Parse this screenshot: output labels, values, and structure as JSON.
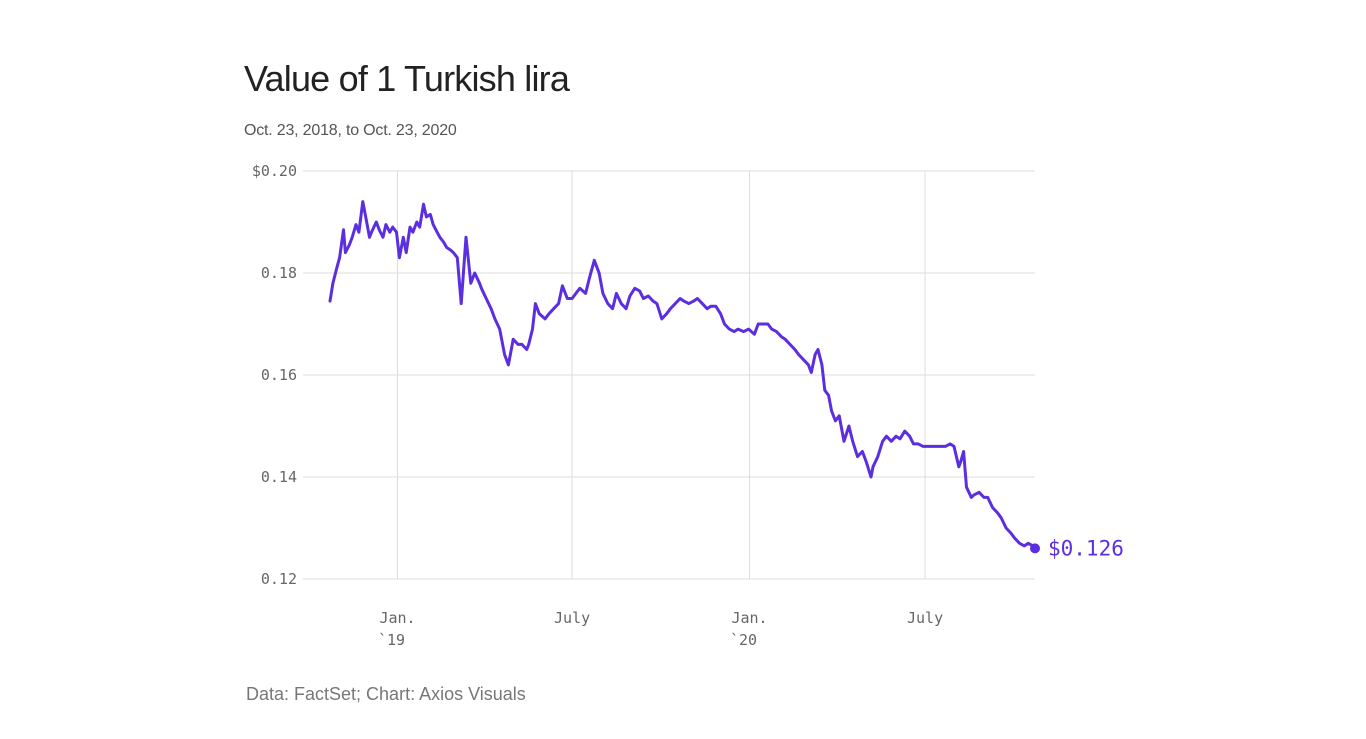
{
  "header": {
    "title": "Value of 1 Turkish lira",
    "subtitle": "Oct. 23, 2018, to Oct. 23, 2020"
  },
  "footer": {
    "source": "Data: FactSet; Chart: Axios Visuals"
  },
  "colors": {
    "line": "#5b2ee0",
    "grid": "#dddddd",
    "text": "#666666"
  },
  "chart_data": {
    "type": "line",
    "title": "Value of 1 Turkish lira",
    "subtitle": "Oct. 23, 2018, to Oct. 23, 2020",
    "xlabel": "",
    "ylabel": "",
    "ylim": [
      0.12,
      0.2
    ],
    "xlim": [
      "2018-10-23",
      "2020-10-23"
    ],
    "grid": true,
    "y_ticks": [
      {
        "value": 0.2,
        "label": "$0.20"
      },
      {
        "value": 0.18,
        "label": "0.18"
      },
      {
        "value": 0.16,
        "label": "0.16"
      },
      {
        "value": 0.14,
        "label": "0.14"
      },
      {
        "value": 0.12,
        "label": "0.12"
      }
    ],
    "x_ticks": [
      {
        "date": "2019-01-01",
        "label": "Jan.",
        "sublabel": "`19"
      },
      {
        "date": "2019-07-01",
        "label": "July",
        "sublabel": ""
      },
      {
        "date": "2020-01-01",
        "label": "Jan.",
        "sublabel": "`20"
      },
      {
        "date": "2020-07-01",
        "label": "July",
        "sublabel": ""
      }
    ],
    "end_label": "$0.126",
    "series": [
      {
        "x": [
          "2018-10-23",
          "2018-10-26",
          "2018-10-30",
          "2018-11-02",
          "2018-11-06",
          "2018-11-08",
          "2018-11-12",
          "2018-11-15",
          "2018-11-19",
          "2018-11-22",
          "2018-11-26",
          "2018-11-29",
          "2018-12-03",
          "2018-12-05",
          "2018-12-10",
          "2018-12-13",
          "2018-12-17",
          "2018-12-20",
          "2018-12-24",
          "2018-12-27",
          "2018-12-31",
          "2019-01-03",
          "2019-01-07",
          "2019-01-10",
          "2019-01-14",
          "2019-01-17",
          "2019-01-21",
          "2019-01-24",
          "2019-01-28",
          "2019-01-31",
          "2019-02-04",
          "2019-02-07",
          "2019-02-11",
          "2019-02-14",
          "2019-02-18",
          "2019-02-21",
          "2019-02-25",
          "2019-02-28",
          "2019-03-04",
          "2019-03-08",
          "2019-03-13",
          "2019-03-18",
          "2019-03-22",
          "2019-03-27",
          "2019-03-29",
          "2019-04-03",
          "2019-04-08",
          "2019-04-12",
          "2019-04-17",
          "2019-04-22",
          "2019-04-26",
          "2019-05-01",
          "2019-05-06",
          "2019-05-10",
          "2019-05-15",
          "2019-05-17",
          "2019-05-21",
          "2019-05-24",
          "2019-05-28",
          "2019-06-03",
          "2019-06-07",
          "2019-06-12",
          "2019-06-17",
          "2019-06-21",
          "2019-06-26",
          "2019-07-01",
          "2019-07-05",
          "2019-07-09",
          "2019-07-15",
          "2019-07-19",
          "2019-07-24",
          "2019-07-29",
          "2019-08-02",
          "2019-08-07",
          "2019-08-12",
          "2019-08-16",
          "2019-08-21",
          "2019-08-26",
          "2019-08-30",
          "2019-09-04",
          "2019-09-09",
          "2019-09-13",
          "2019-09-18",
          "2019-09-23",
          "2019-09-27",
          "2019-10-02",
          "2019-10-07",
          "2019-10-11",
          "2019-10-16",
          "2019-10-21",
          "2019-10-25",
          "2019-10-30",
          "2019-11-04",
          "2019-11-08",
          "2019-11-13",
          "2019-11-18",
          "2019-11-22",
          "2019-11-27",
          "2019-12-02",
          "2019-12-06",
          "2019-12-11",
          "2019-12-16",
          "2019-12-20",
          "2019-12-26",
          "2019-12-31",
          "2020-01-06",
          "2020-01-10",
          "2020-01-15",
          "2020-01-20",
          "2020-01-24",
          "2020-01-29",
          "2020-02-03",
          "2020-02-07",
          "2020-02-12",
          "2020-02-17",
          "2020-02-21",
          "2020-02-26",
          "2020-03-02",
          "2020-03-05",
          "2020-03-09",
          "2020-03-12",
          "2020-03-16",
          "2020-03-19",
          "2020-03-23",
          "2020-03-26",
          "2020-03-30",
          "2020-04-03",
          "2020-04-08",
          "2020-04-13",
          "2020-04-17",
          "2020-04-22",
          "2020-04-27",
          "2020-05-01",
          "2020-05-06",
          "2020-05-08",
          "2020-05-13",
          "2020-05-18",
          "2020-05-22",
          "2020-05-27",
          "2020-06-01",
          "2020-06-05",
          "2020-06-10",
          "2020-06-15",
          "2020-06-19",
          "2020-06-24",
          "2020-06-29",
          "2020-07-03",
          "2020-07-08",
          "2020-07-13",
          "2020-07-17",
          "2020-07-22",
          "2020-07-27",
          "2020-07-31",
          "2020-08-05",
          "2020-08-07",
          "2020-08-10",
          "2020-08-13",
          "2020-08-18",
          "2020-08-21",
          "2020-08-26",
          "2020-08-31",
          "2020-09-04",
          "2020-09-09",
          "2020-09-14",
          "2020-09-18",
          "2020-09-23",
          "2020-09-28",
          "2020-10-02",
          "2020-10-07",
          "2020-10-12",
          "2020-10-16",
          "2020-10-21",
          "2020-10-23"
        ],
        "y": [
          0.1745,
          0.178,
          0.181,
          0.183,
          0.1885,
          0.184,
          0.1855,
          0.187,
          0.1895,
          0.188,
          0.194,
          0.191,
          0.187,
          0.188,
          0.19,
          0.1885,
          0.187,
          0.1895,
          0.188,
          0.189,
          0.188,
          0.183,
          0.187,
          0.184,
          0.189,
          0.188,
          0.19,
          0.189,
          0.1935,
          0.191,
          0.1915,
          0.1895,
          0.188,
          0.187,
          0.186,
          0.185,
          0.1845,
          0.184,
          0.183,
          0.174,
          0.187,
          0.178,
          0.18,
          0.178,
          0.177,
          0.175,
          0.173,
          0.171,
          0.169,
          0.164,
          0.162,
          0.167,
          0.166,
          0.166,
          0.165,
          0.166,
          0.169,
          0.174,
          0.172,
          0.171,
          0.172,
          0.173,
          0.174,
          0.1775,
          0.175,
          0.175,
          0.176,
          0.177,
          0.176,
          0.179,
          0.1825,
          0.18,
          0.176,
          0.174,
          0.173,
          0.176,
          0.174,
          0.173,
          0.1755,
          0.177,
          0.1765,
          0.175,
          0.1755,
          0.1745,
          0.174,
          0.171,
          0.172,
          0.173,
          0.174,
          0.175,
          0.1745,
          0.174,
          0.1745,
          0.175,
          0.174,
          0.173,
          0.1735,
          0.1735,
          0.172,
          0.17,
          0.169,
          0.1685,
          0.169,
          0.1685,
          0.169,
          0.168,
          0.17,
          0.17,
          0.17,
          0.169,
          0.1685,
          0.1675,
          0.167,
          0.166,
          0.165,
          0.164,
          0.163,
          0.162,
          0.1605,
          0.164,
          0.165,
          0.162,
          0.157,
          0.156,
          0.153,
          0.151,
          0.152,
          0.147,
          0.15,
          0.147,
          0.144,
          0.145,
          0.143,
          0.14,
          0.142,
          0.144,
          0.147,
          0.148,
          0.147,
          0.148,
          0.1475,
          0.149,
          0.148,
          0.1465,
          0.1465,
          0.146,
          0.146,
          0.146,
          0.146,
          0.146,
          0.146,
          0.1465,
          0.146,
          0.142,
          0.143,
          0.145,
          0.138,
          0.136,
          0.1365,
          0.137,
          0.136,
          0.136,
          0.134,
          0.133,
          0.132,
          0.13,
          0.129,
          0.128,
          0.127,
          0.1265,
          0.127,
          0.1265,
          0.126
        ]
      }
    ]
  }
}
